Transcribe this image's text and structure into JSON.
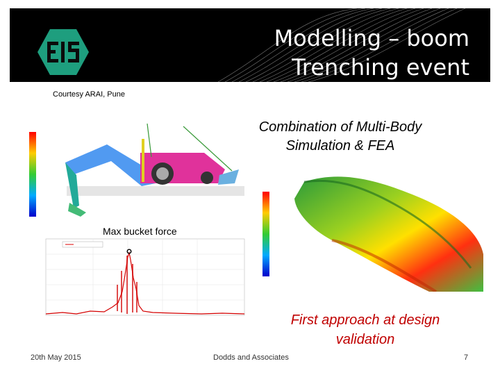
{
  "header": {
    "title_line1": "Modelling – boom",
    "title_line2": "Trenching event",
    "logo_text": "EIS",
    "accent_color": "#1e9e7e"
  },
  "courtesy": "Courtesy ARAI, Pune",
  "combination": {
    "line1": "Combination of Multi-Body",
    "line2": "Simulation & FEA"
  },
  "max_bucket_force": "Max bucket force",
  "first_approach": {
    "line1": "First approach at design",
    "line2": "validation",
    "color": "#c00000"
  },
  "footer": {
    "date": "20th May 2015",
    "center": "Dodds and Associates",
    "page": "7"
  }
}
